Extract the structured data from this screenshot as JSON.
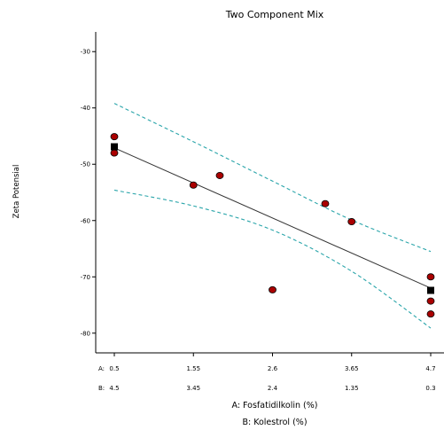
{
  "chart_data": {
    "type": "scatter",
    "title": "Two Component Mix",
    "ylabel": "Zeta Potensial",
    "xlabel_a": "A: Fosfatidilkolin (%)",
    "xlabel_b": "B: Kolestrol (%)",
    "ylim": [
      -83.5,
      -26.5
    ],
    "y_ticks": [
      -30,
      -40,
      -50,
      -60,
      -70,
      -80
    ],
    "x_axis": {
      "a_prefix": "A:",
      "b_prefix": "B:",
      "a_ticks": [
        0.5,
        1.55,
        2.6,
        3.65,
        4.7
      ],
      "b_ticks": [
        4.5,
        3.45,
        2.4,
        1.35,
        0.3
      ],
      "a_range": [
        0.5,
        4.7
      ]
    },
    "observations": {
      "x": [
        0.5,
        0.5,
        1.55,
        1.9,
        2.6,
        3.3,
        3.65,
        4.7,
        4.7,
        4.7
      ],
      "y": [
        -45.1,
        -48.0,
        -53.7,
        -52.0,
        -72.3,
        -57.0,
        -60.2,
        -70.0,
        -74.3,
        -76.6
      ]
    },
    "design_points": {
      "x": [
        0.5,
        4.7
      ],
      "y": [
        -46.9,
        -72.4
      ]
    },
    "fit_line": {
      "x": [
        0.5,
        4.7
      ],
      "y": [
        -47.1,
        -72.0
      ]
    },
    "confidence_band_upper": {
      "x": [
        0.5,
        1.55,
        2.6,
        3.65,
        4.7
      ],
      "y": [
        -39.2,
        -46.0,
        -53.0,
        -59.9,
        -65.5
      ]
    },
    "confidence_band_lower": {
      "x": [
        0.5,
        1.55,
        2.6,
        3.65,
        4.7
      ],
      "y": [
        -54.6,
        -57.4,
        -61.7,
        -69.0,
        -79.1
      ]
    },
    "colors": {
      "observation_fill": "#aa0000",
      "design_point": "#000000",
      "fit_line": "#333333",
      "band": "#2aa5aa"
    },
    "grid": false
  }
}
